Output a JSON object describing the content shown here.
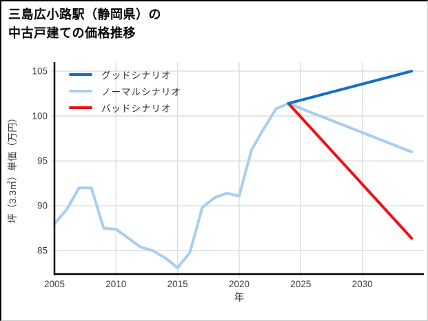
{
  "window": {
    "title_line1": "三島広小路駅（静岡県）の",
    "title_line2": "中古戸建ての価格推移"
  },
  "legend": {
    "items": [
      {
        "label": "グッドシナリオ",
        "color": "#1470c8"
      },
      {
        "label": "ノーマルシナリオ",
        "color": "#a9cdf0"
      },
      {
        "label": "バッドシナリオ",
        "color": "#ee1111"
      }
    ]
  },
  "axes": {
    "xlabel": "年",
    "ylabel": "坪（3.3㎡）単価（万円）",
    "x_tick_labels": [
      "2005",
      "2010",
      "2015",
      "2020",
      "2025",
      "2030"
    ],
    "y_tick_labels": [
      "85",
      "90",
      "95",
      "100",
      "105"
    ]
  },
  "chart_data": {
    "type": "line",
    "title": "三島広小路駅（静岡県）の中古戸建ての価格推移",
    "xlabel": "年",
    "ylabel": "坪（3.3㎡）単価（万円）",
    "xlim": [
      2005,
      2035
    ],
    "ylim": [
      82.4,
      106
    ],
    "x_ticks": [
      2005,
      2010,
      2015,
      2020,
      2025,
      2030
    ],
    "y_ticks": [
      85,
      90,
      95,
      100,
      105
    ],
    "grid": true,
    "legend_position": "upper left",
    "grid_color": "#d9d9d9",
    "series": [
      {
        "id": "history",
        "legend_label": null,
        "color": "#a9cdf0",
        "x": [
          2005,
          2006,
          2007,
          2008,
          2009,
          2010,
          2011,
          2012,
          2013,
          2014,
          2015,
          2016,
          2017,
          2018,
          2019,
          2020,
          2021,
          2022,
          2023,
          2024
        ],
        "y": [
          88.0,
          89.6,
          92.0,
          92.0,
          87.5,
          87.4,
          86.4,
          85.4,
          85.0,
          84.2,
          83.1,
          84.8,
          89.8,
          90.9,
          91.4,
          91.1,
          96.2,
          98.6,
          100.8,
          101.4
        ]
      },
      {
        "id": "normal",
        "legend_label": "ノーマルシナリオ",
        "color": "#a9cdf0",
        "x": [
          2024,
          2034
        ],
        "y": [
          101.4,
          96.0
        ]
      },
      {
        "id": "bad",
        "legend_label": "バッドシナリオ",
        "color": "#ee1111",
        "x": [
          2024,
          2034
        ],
        "y": [
          101.4,
          86.4
        ]
      },
      {
        "id": "good",
        "legend_label": "グッドシナリオ",
        "color": "#1470c8",
        "x": [
          2024,
          2034
        ],
        "y": [
          101.4,
          105.0
        ]
      }
    ]
  }
}
